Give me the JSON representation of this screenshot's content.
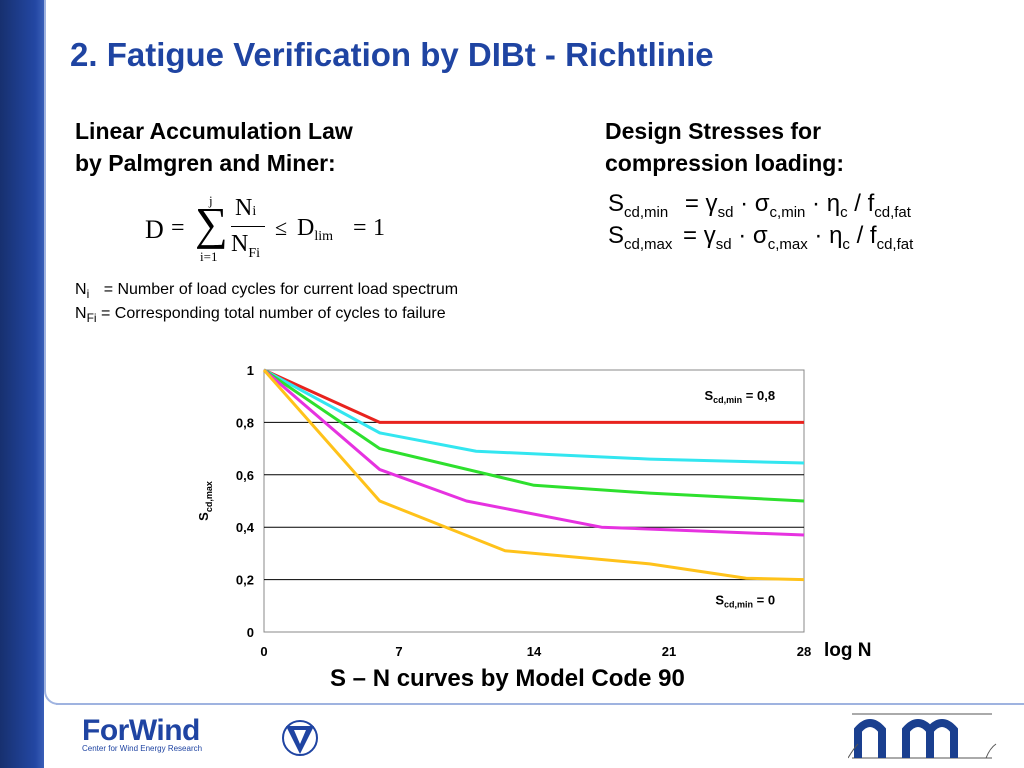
{
  "slide": {
    "title": "2. Fatigue Verification by DIBt - Richtlinie",
    "left_heading_line1": "Linear Accumulation Law",
    "left_heading_line2": "by Palmgren and Miner:",
    "right_heading_line1": "Design Stresses for",
    "right_heading_line2": "compression loading:",
    "formula": {
      "D": "D",
      "eq": "=",
      "sigma": "∑",
      "upper": "j",
      "lower": "i=1",
      "num": "N",
      "num_sub": "i",
      "den": "N",
      "den_sub": "Fi",
      "leq": "≤",
      "Dlim": "D",
      "Dlim_sub": "lim",
      "eq2": "=",
      "one": "1"
    },
    "def1": {
      "sym": "N",
      "sub": "i",
      "text": "= Number of load cycles for current load spectrum"
    },
    "def2": {
      "sym": "N",
      "sub": "Fi",
      "text": "= Corresponding total number of cycles to failure"
    },
    "eq_min": {
      "S": "S",
      "S_sub": "cd,min",
      "rest1": "= γ",
      "g_sub": "sd",
      "rest2": " · σ",
      "s_sub": "c,min",
      "rest3": " · η",
      "e_sub": "c",
      "rest4": " / f",
      "f_sub": "cd,fat"
    },
    "eq_max": {
      "S": "S",
      "S_sub": "cd,max",
      "rest1": "= γ",
      "g_sub": "sd",
      "rest2": " · σ",
      "s_sub": "c,max",
      "rest3": " · η",
      "e_sub": "c",
      "rest4": " / f",
      "f_sub": "cd,fat"
    },
    "caption": "S – N curves by Model Code 90",
    "logo_main": "ForWind",
    "logo_sub": "Center for Wind Energy Research"
  },
  "chart_data": {
    "type": "line",
    "xlabel": "log N",
    "ylabel": "S",
    "ylabel_sub": "cd,max",
    "xlim": [
      0,
      28
    ],
    "ylim": [
      0,
      1
    ],
    "xticks": [
      "0",
      "7",
      "14",
      "21",
      "28"
    ],
    "yticks": [
      {
        "v": 0,
        "label": "0"
      },
      {
        "v": 0.2,
        "label": "0,2"
      },
      {
        "v": 0.4,
        "label": "0,4"
      },
      {
        "v": 0.6,
        "label": "0,6"
      },
      {
        "v": 0.8,
        "label": "0,8"
      },
      {
        "v": 1,
        "label": "1"
      }
    ],
    "grid": "horizontal",
    "annotations": [
      {
        "main": "S",
        "sub": "cd,min",
        "rest": " = 0,8",
        "x": 26.5,
        "y": 0.885
      },
      {
        "main": "S",
        "sub": "cd,min",
        "rest": " = 0",
        "x": 26.5,
        "y": 0.105
      }
    ],
    "series": [
      {
        "color": "#e8231e",
        "x": [
          0,
          6,
          10,
          20,
          28
        ],
        "y": [
          1.0,
          0.8,
          0.8,
          0.8,
          0.8
        ]
      },
      {
        "color": "#33e6f0",
        "x": [
          0,
          6,
          11,
          20,
          28
        ],
        "y": [
          1.0,
          0.76,
          0.69,
          0.66,
          0.645
        ]
      },
      {
        "color": "#2ee02e",
        "x": [
          0,
          6,
          14,
          20,
          28
        ],
        "y": [
          1.0,
          0.7,
          0.56,
          0.53,
          0.5
        ]
      },
      {
        "color": "#e632e0",
        "x": [
          0,
          6,
          10.5,
          17.5,
          28
        ],
        "y": [
          1.0,
          0.62,
          0.5,
          0.4,
          0.37
        ]
      },
      {
        "color": "#ffc21a",
        "x": [
          0,
          6,
          12.5,
          20,
          25,
          28
        ],
        "y": [
          1.0,
          0.5,
          0.31,
          0.26,
          0.205,
          0.2
        ]
      }
    ]
  }
}
